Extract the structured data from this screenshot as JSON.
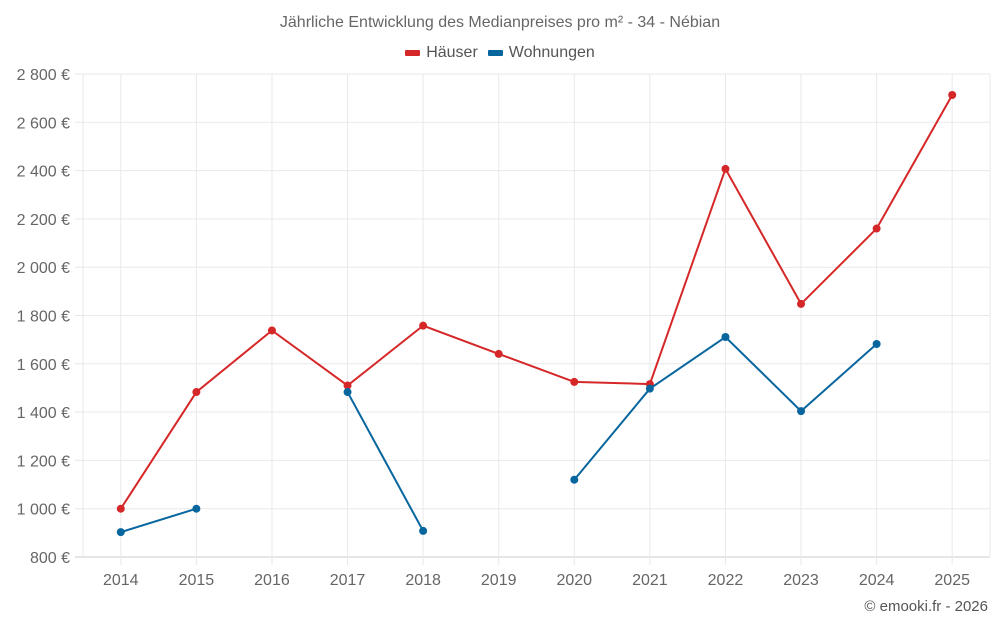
{
  "title": "Jährliche Entwicklung des Medianpreises pro m² - 34 - Nébian",
  "legend": [
    {
      "label": "Häuser",
      "color": "#d62728"
    },
    {
      "label": "Wohnungen",
      "color": "#08669f"
    }
  ],
  "credit": "© emooki.fr - 2026",
  "chart_data": {
    "type": "line",
    "title": "Jährliche Entwicklung des Medianpreises pro m² - 34 - Nébian",
    "xlabel": "",
    "ylabel": "",
    "categories": [
      "2014",
      "2015",
      "2016",
      "2017",
      "2018",
      "2019",
      "2020",
      "2021",
      "2022",
      "2023",
      "2024",
      "2025"
    ],
    "series": [
      {
        "name": "Häuser",
        "color": "#d62728",
        "values": [
          1000,
          1483,
          1738,
          1510,
          1758,
          1641,
          1525,
          1516,
          2407,
          1848,
          2160,
          2713
        ]
      },
      {
        "name": "Wohnungen",
        "color": "#08669f",
        "values": [
          903,
          1000,
          null,
          1483,
          908,
          null,
          1120,
          1497,
          1711,
          1404,
          1682,
          null
        ]
      }
    ],
    "ylim": [
      800,
      2800
    ],
    "yticks": [
      800,
      1000,
      1200,
      1400,
      1600,
      1800,
      2000,
      2200,
      2400,
      2600,
      2800
    ],
    "ytick_labels": [
      "800 €",
      "1 000 €",
      "1 200 €",
      "1 400 €",
      "1 600 €",
      "1 800 €",
      "2 000 €",
      "2 200 €",
      "2 400 €",
      "2 600 €",
      "2 800 €"
    ],
    "grid": true,
    "legend_position": "top"
  }
}
